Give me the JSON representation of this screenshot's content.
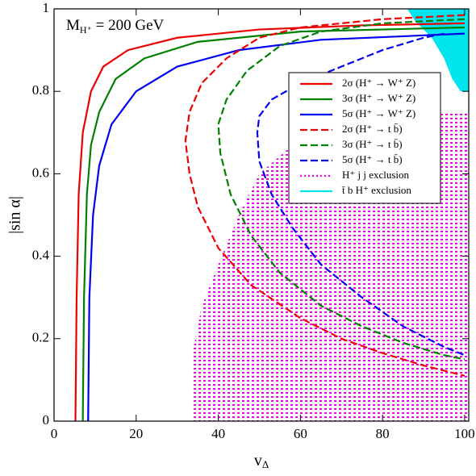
{
  "chart_data": {
    "type": "line",
    "annotation": {
      "main": "M",
      "sub": "H⁺",
      "rest": " = 200 GeV"
    },
    "xlabel": {
      "main": "v",
      "sub": "Δ"
    },
    "ylabel": "|sin α|",
    "xlim": [
      0,
      101
    ],
    "ylim": [
      0,
      1
    ],
    "xticks": [
      0,
      20,
      40,
      60,
      80,
      100
    ],
    "yticks": [
      0,
      0.2,
      0.4,
      0.6,
      0.8,
      1
    ],
    "legend": "upper right",
    "series": [
      {
        "name": "t̄ b H⁺ exclusion",
        "color": "#00e5ee",
        "style": "region",
        "legend_order": 7,
        "x": [
          86,
          88,
          92,
          95,
          97,
          99,
          101,
          101
        ],
        "values": [
          1,
          0.97,
          0.93,
          0.88,
          0.83,
          0.8,
          0.8,
          1
        ]
      },
      {
        "name": "H⁺ j j exclusion",
        "color": "#ee00ee",
        "style": "region",
        "legend_order": 6,
        "x": [
          34,
          34,
          36,
          40,
          45,
          50,
          57,
          65,
          75,
          84,
          101,
          101
        ],
        "values": [
          0,
          0.18,
          0.28,
          0.38,
          0.5,
          0.6,
          0.66,
          0.7,
          0.73,
          0.75,
          0.75,
          0
        ]
      },
      {
        "name": "2σ (H⁺ → W⁺ Z)",
        "color": "#ee0000",
        "style": "solid",
        "legend_order": 0,
        "x": [
          5.2,
          5.5,
          6,
          7,
          9,
          12,
          18,
          30,
          50,
          75,
          100
        ],
        "values": [
          0,
          0.3,
          0.55,
          0.7,
          0.8,
          0.86,
          0.9,
          0.93,
          0.95,
          0.96,
          0.965
        ]
      },
      {
        "name": "3σ (H⁺ → W⁺ Z)",
        "color": "#008000",
        "style": "solid",
        "legend_order": 1,
        "x": [
          7,
          7.3,
          8,
          9,
          11,
          15,
          22,
          35,
          60,
          100
        ],
        "values": [
          0,
          0.3,
          0.55,
          0.67,
          0.75,
          0.83,
          0.88,
          0.92,
          0.945,
          0.955
        ]
      },
      {
        "name": "5σ (H⁺ → W⁺ Z)",
        "color": "#0000ee",
        "style": "solid",
        "legend_order": 2,
        "x": [
          8.3,
          8.6,
          9.5,
          11,
          14,
          20,
          30,
          45,
          65,
          100
        ],
        "values": [
          0,
          0.3,
          0.5,
          0.62,
          0.72,
          0.8,
          0.86,
          0.9,
          0.925,
          0.94
        ]
      },
      {
        "name": "2σ (H⁺ → t b̄)",
        "color": "#ee0000",
        "style": "dashed",
        "legend_order": 3,
        "x": [
          100,
          80,
          60,
          50,
          42,
          36,
          33,
          32,
          33,
          35,
          40,
          48,
          60,
          70,
          80,
          90,
          100
        ],
        "values": [
          0.985,
          0.975,
          0.955,
          0.93,
          0.88,
          0.82,
          0.75,
          0.68,
          0.6,
          0.52,
          0.42,
          0.33,
          0.25,
          0.2,
          0.165,
          0.135,
          0.11
        ]
      },
      {
        "name": "3σ (H⁺ → t b̄)",
        "color": "#008000",
        "style": "dashed",
        "legend_order": 4,
        "x": [
          100,
          80,
          65,
          55,
          47,
          42,
          40,
          40.5,
          43,
          48,
          55,
          65,
          75,
          85,
          95,
          100
        ],
        "values": [
          0.975,
          0.965,
          0.945,
          0.91,
          0.85,
          0.78,
          0.72,
          0.65,
          0.55,
          0.45,
          0.36,
          0.28,
          0.23,
          0.19,
          0.16,
          0.15
        ]
      },
      {
        "name": "5σ (H⁺ → t b̄)",
        "color": "#0000ee",
        "style": "dashed",
        "legend_order": 5,
        "x": [
          95,
          90,
          80,
          70,
          60,
          53,
          50,
          49.5,
          50,
          53,
          58,
          65,
          75,
          85,
          95,
          100
        ],
        "values": [
          0.94,
          0.93,
          0.9,
          0.86,
          0.82,
          0.78,
          0.74,
          0.7,
          0.63,
          0.55,
          0.47,
          0.38,
          0.3,
          0.23,
          0.18,
          0.16
        ]
      }
    ]
  }
}
